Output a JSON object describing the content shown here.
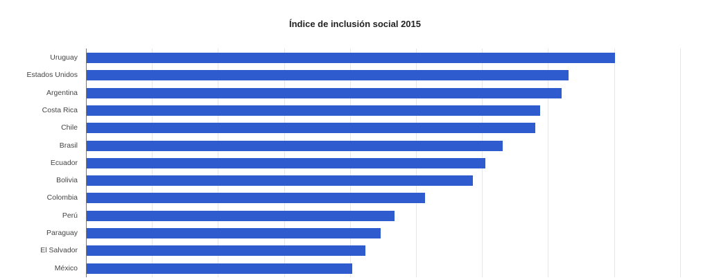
{
  "chart_data": {
    "type": "bar",
    "orientation": "horizontal",
    "title": "Índice de inclusión social 2015",
    "xlabel": "",
    "ylabel": "",
    "xlim": [
      0,
      90
    ],
    "grid": true,
    "bar_color": "#2e5ccf",
    "categories": [
      "Uruguay",
      "Estados Unidos",
      "Argentina",
      "Costa Rica",
      "Chile",
      "Brasil",
      "Ecuador",
      "Bolivia",
      "Colombia",
      "Perú",
      "Paraguay",
      "El Salvador",
      "México"
    ],
    "values": [
      80,
      73,
      72,
      68.7,
      68,
      63,
      60.4,
      58.5,
      51.3,
      46.6,
      44.5,
      42.2,
      40.2
    ]
  }
}
